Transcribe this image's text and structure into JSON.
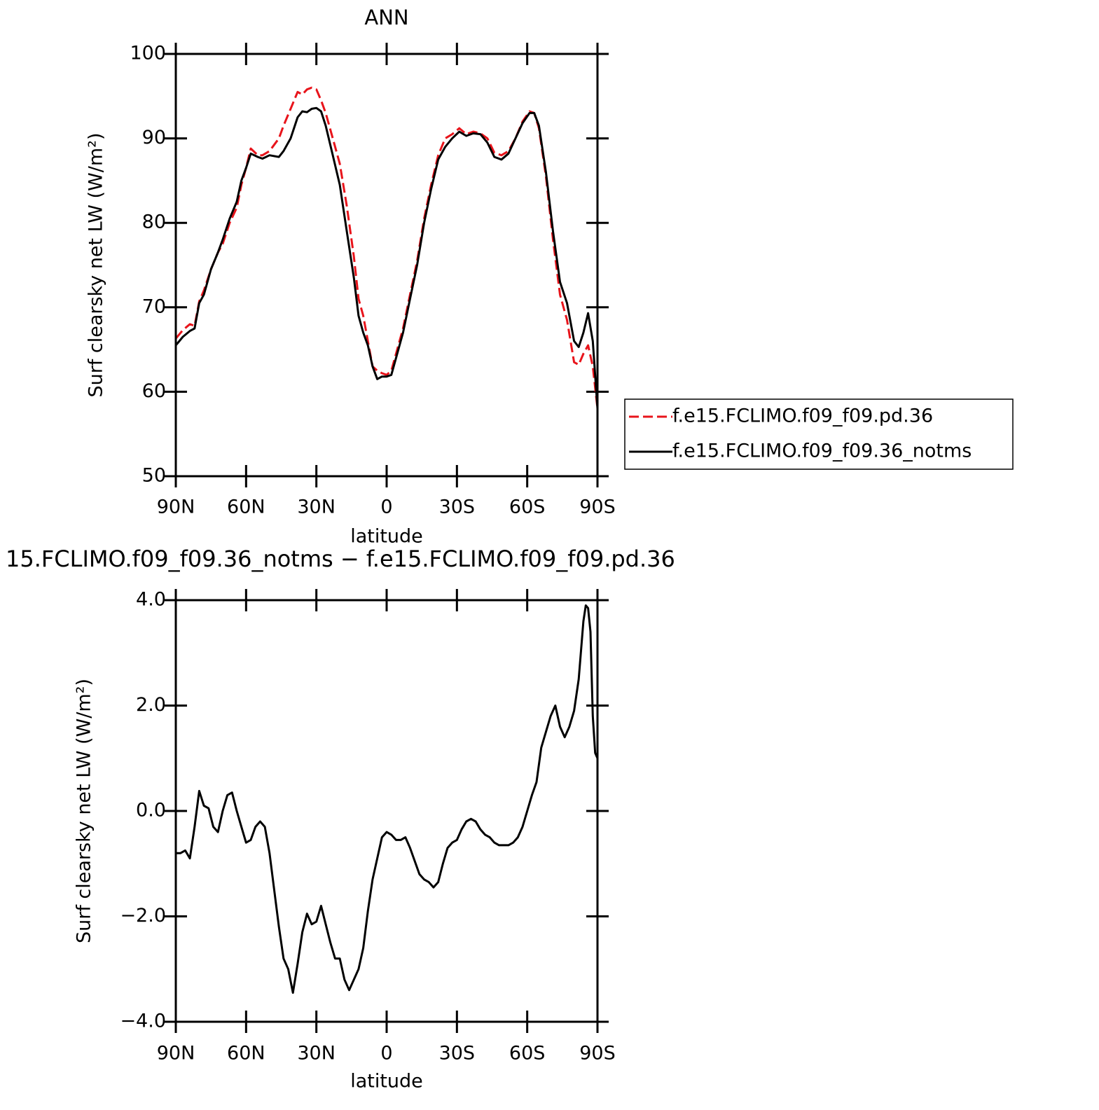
{
  "chart_data": [
    {
      "type": "line",
      "title": "ANN",
      "xlabel": "latitude",
      "ylabel": "Surf clearsky net LW (W/m²)",
      "x": [
        90,
        87,
        84,
        82,
        80,
        78,
        75,
        72,
        70,
        67,
        64,
        62,
        60,
        58,
        55,
        53,
        50,
        46,
        44,
        41,
        38,
        36,
        34,
        32,
        30,
        28,
        26,
        23,
        20,
        17,
        14,
        12,
        10,
        8,
        6,
        4,
        2,
        0,
        -2,
        -4,
        -7,
        -10,
        -13,
        -16,
        -19,
        -22,
        -25,
        -28,
        -31,
        -34,
        -37,
        -40,
        -43,
        -46,
        -49,
        -52,
        -55,
        -58,
        -61,
        -63,
        -65,
        -68,
        -71,
        -74,
        -77,
        -80,
        -82,
        -84,
        -86,
        -88,
        -90
      ],
      "series": [
        {
          "name": "f.e15.FCLIMO.f09_f09.pd.36",
          "color": "#e8141b",
          "dash": true,
          "values": [
            66.3,
            67.3,
            68,
            67.8,
            70.7,
            72,
            74.5,
            76.5,
            77.5,
            80,
            81.8,
            84.5,
            86.5,
            88.8,
            88,
            88,
            88.5,
            90,
            91.5,
            93.5,
            95.5,
            95.2,
            95.8,
            96,
            95.8,
            94.5,
            93,
            90,
            87,
            82,
            76,
            71,
            69,
            66,
            63,
            62.5,
            62.2,
            62,
            62.5,
            64.5,
            67.5,
            71.5,
            75.5,
            80.5,
            84.5,
            88,
            90,
            90.5,
            91.2,
            90.5,
            90.8,
            90.6,
            90,
            88.3,
            88,
            88.5,
            90,
            92,
            93.2,
            93,
            91.2,
            85.5,
            78,
            71.5,
            68.5,
            63.5,
            63.2,
            64.5,
            65.5,
            63,
            58
          ]
        },
        {
          "name": "f.e15.FCLIMO.f09_f09.36_notms",
          "color": "#000000",
          "dash": false,
          "values": [
            65.5,
            66.5,
            67.2,
            67.5,
            70.5,
            71.5,
            74.5,
            76.5,
            78,
            80.5,
            82.5,
            85,
            86.5,
            88.2,
            87.8,
            87.6,
            88,
            87.8,
            88.5,
            90,
            92.5,
            93.2,
            93.1,
            93.5,
            93.6,
            93.2,
            91.5,
            88,
            84.5,
            79,
            73.5,
            69,
            67,
            65.5,
            63,
            61.5,
            61.8,
            61.8,
            62,
            64,
            67,
            71,
            75,
            80,
            84,
            87.5,
            89,
            90,
            90.8,
            90.3,
            90.6,
            90.5,
            89.5,
            87.8,
            87.5,
            88.2,
            90,
            91.8,
            93,
            93,
            91.5,
            86,
            79,
            73,
            70.5,
            66,
            65.3,
            67,
            69.3,
            66,
            58
          ]
        }
      ],
      "xlim": [
        90,
        -90
      ],
      "xticks": [
        {
          "value": 90,
          "label": "90N"
        },
        {
          "value": 60,
          "label": "60N"
        },
        {
          "value": 30,
          "label": "30N"
        },
        0,
        {
          "value": -30,
          "label": "30S"
        },
        {
          "value": -60,
          "label": "60S"
        },
        {
          "value": -90,
          "label": "90S"
        }
      ],
      "ylim": [
        50,
        100
      ],
      "yticks": [
        50,
        60,
        70,
        80,
        90,
        100
      ],
      "legend": "right"
    },
    {
      "type": "line",
      "title": "15.FCLIMO.f09_f09.36_notms − f.e15.FCLIMO.f09_f09.pd.36",
      "xlabel": "latitude",
      "ylabel": "Surf clearsky net LW (W/m²)",
      "x": [
        90,
        88,
        86,
        84,
        82,
        80,
        78,
        76,
        74,
        72,
        70,
        68,
        66,
        64,
        62,
        60,
        58,
        56,
        54,
        52,
        50,
        48,
        46,
        44,
        42,
        40,
        38,
        36,
        34,
        32,
        30,
        28,
        26,
        24,
        22,
        20,
        18,
        16,
        14,
        12,
        10,
        8,
        6,
        4,
        2,
        0,
        -2,
        -4,
        -6,
        -8,
        -10,
        -12,
        -14,
        -16,
        -18,
        -20,
        -22,
        -24,
        -26,
        -28,
        -30,
        -32,
        -34,
        -36,
        -38,
        -40,
        -42,
        -44,
        -46,
        -48,
        -50,
        -52,
        -54,
        -56,
        -58,
        -60,
        -62,
        -64,
        -66,
        -68,
        -70,
        -72,
        -74,
        -76,
        -78,
        -80,
        -82,
        -84,
        -85,
        -86,
        -87,
        -88,
        -89,
        -90
      ],
      "series": [
        {
          "color": "#000000",
          "dash": false,
          "values": [
            -0.8,
            -0.8,
            -0.75,
            -0.9,
            -0.3,
            0.38,
            0.1,
            0.05,
            -0.3,
            -0.4,
            0,
            0.3,
            0.35,
            0,
            -0.3,
            -0.6,
            -0.55,
            -0.3,
            -0.2,
            -0.3,
            -0.8,
            -1.5,
            -2.2,
            -2.8,
            -3,
            -3.45,
            -2.9,
            -2.3,
            -1.95,
            -2.15,
            -2.1,
            -1.8,
            -2.15,
            -2.5,
            -2.8,
            -2.8,
            -3.2,
            -3.4,
            -3.2,
            -3,
            -2.6,
            -1.9,
            -1.3,
            -0.9,
            -0.5,
            -0.4,
            -0.45,
            -0.55,
            -0.55,
            -0.5,
            -0.7,
            -0.95,
            -1.2,
            -1.3,
            -1.35,
            -1.45,
            -1.35,
            -1,
            -0.7,
            -0.6,
            -0.55,
            -0.35,
            -0.2,
            -0.15,
            -0.2,
            -0.35,
            -0.45,
            -0.5,
            -0.6,
            -0.65,
            -0.65,
            -0.65,
            -0.6,
            -0.5,
            -0.3,
            0,
            0.3,
            0.55,
            1.2,
            1.5,
            1.8,
            2,
            1.6,
            1.4,
            1.6,
            1.9,
            2.5,
            3.6,
            3.9,
            3.85,
            3.4,
            1.8,
            1.1,
            1
          ]
        }
      ],
      "xlim": [
        90,
        -90
      ],
      "xticks": [
        {
          "value": 90,
          "label": "90N"
        },
        {
          "value": 60,
          "label": "60N"
        },
        {
          "value": 30,
          "label": "30N"
        },
        0,
        {
          "value": -30,
          "label": "30S"
        },
        {
          "value": -60,
          "label": "60S"
        },
        {
          "value": -90,
          "label": "90S"
        }
      ],
      "ylim": [
        -4,
        4
      ],
      "yticks": [
        {
          "value": -4,
          "label": "−4.0"
        },
        {
          "value": -2,
          "label": "−2.0"
        },
        {
          "value": 0,
          "label": "0.0"
        },
        {
          "value": 2,
          "label": "2.0"
        },
        {
          "value": 4,
          "label": "4.0"
        }
      ]
    }
  ]
}
